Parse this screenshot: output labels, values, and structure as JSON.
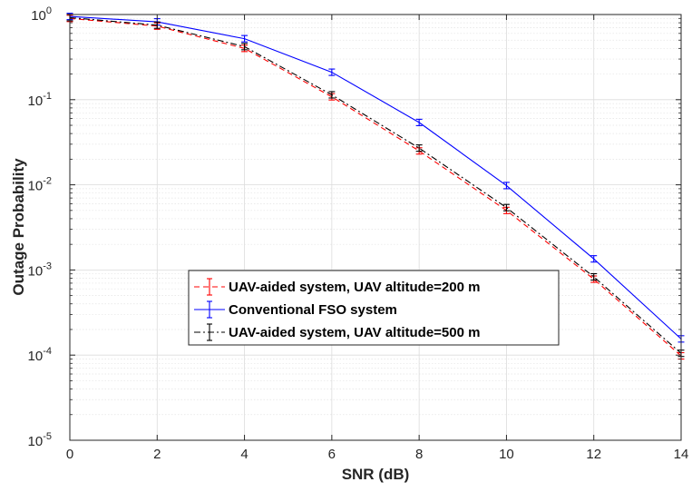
{
  "chart_data": {
    "type": "line",
    "xlabel": "SNR (dB)",
    "ylabel": "Outage Probability",
    "xlim": [
      0,
      14
    ],
    "ylim": [
      1e-05,
      1
    ],
    "yscale": "log",
    "x_ticks": [
      "0",
      "2",
      "4",
      "6",
      "8",
      "10",
      "12",
      "14"
    ],
    "y_ticks": [
      {
        "base": "10",
        "exp": "0",
        "value": 1
      },
      {
        "base": "10",
        "exp": "-1",
        "value": 0.1
      },
      {
        "base": "10",
        "exp": "-2",
        "value": 0.01
      },
      {
        "base": "10",
        "exp": "-3",
        "value": 0.001
      },
      {
        "base": "10",
        "exp": "-4",
        "value": 0.0001
      },
      {
        "base": "10",
        "exp": "-5",
        "value": 1e-05
      }
    ],
    "grid": true,
    "minor_grid": true,
    "legend_position": "lower-center",
    "x": [
      0,
      2,
      4,
      6,
      8,
      10,
      12,
      14
    ],
    "series": [
      {
        "name": "UAV-aided system, UAV altitude=200 m",
        "color": "#ff0000",
        "line_style": "dashed",
        "error_bar_color": "#ff0000",
        "values": [
          0.9,
          0.73,
          0.4,
          0.108,
          0.025,
          0.005,
          0.00078,
          9.8e-05
        ]
      },
      {
        "name": "Conventional FSO system",
        "color": "#0000ff",
        "line_style": "solid",
        "error_bar_color": "#0000ff",
        "values": [
          0.95,
          0.82,
          0.52,
          0.21,
          0.054,
          0.0098,
          0.00135,
          0.000155
        ]
      },
      {
        "name": "UAV-aided system, UAV altitude=500 m",
        "color": "#000000",
        "line_style": "dashdot",
        "error_bar_color": "#000000",
        "values": [
          0.92,
          0.75,
          0.42,
          0.114,
          0.027,
          0.0054,
          0.00083,
          0.000105
        ]
      }
    ]
  }
}
